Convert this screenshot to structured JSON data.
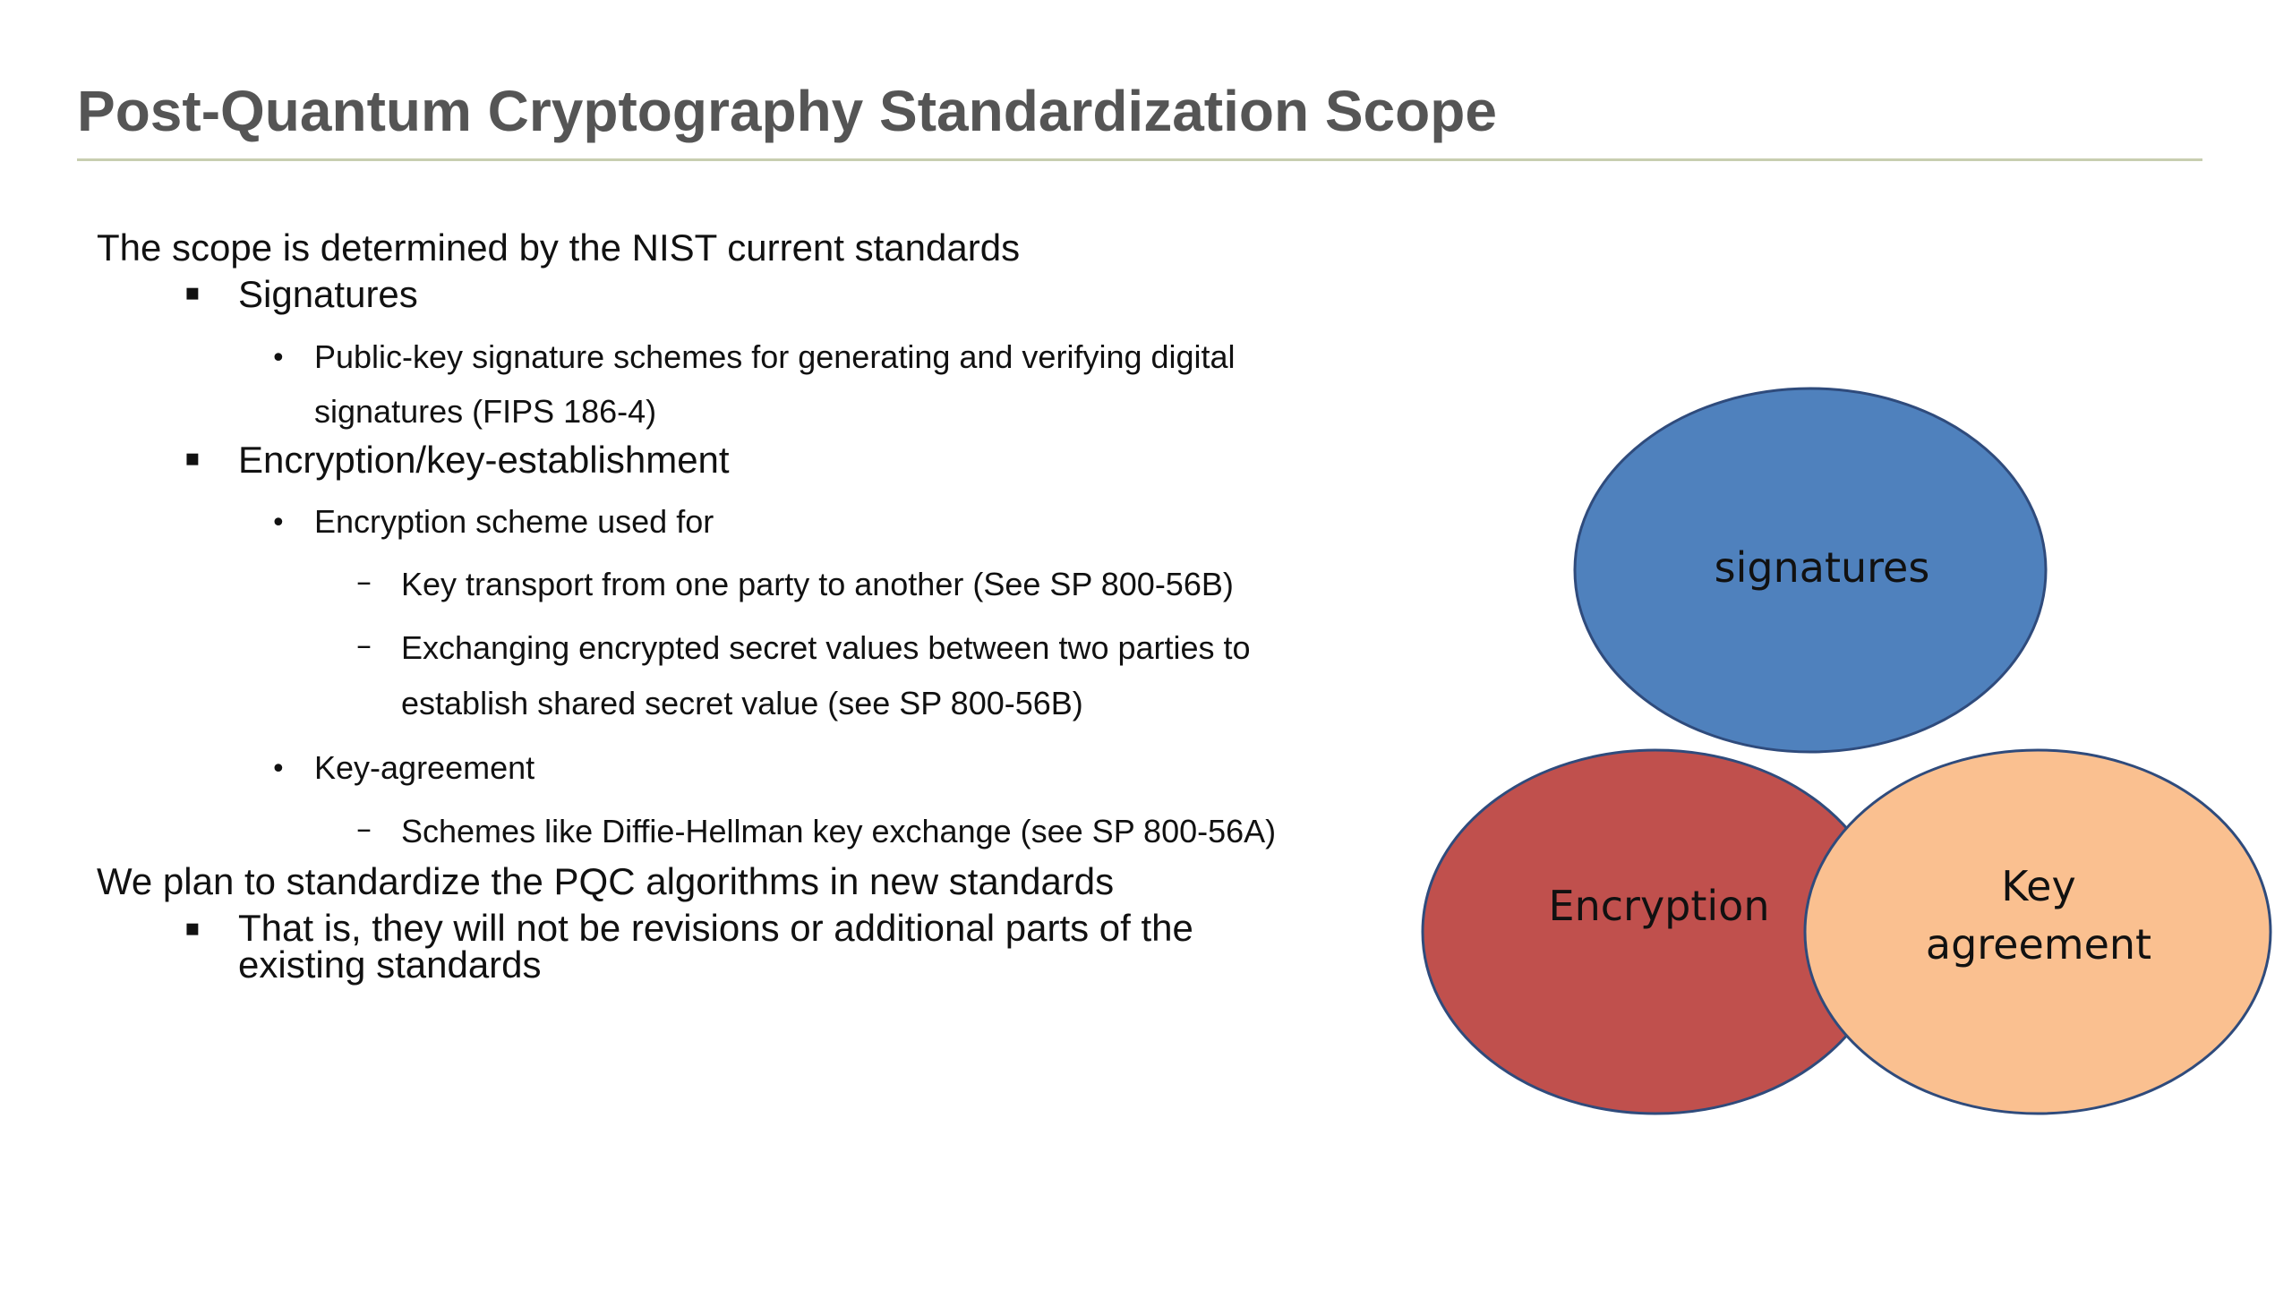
{
  "title": "Post-Quantum Cryptography Standardization Scope",
  "content": {
    "intro": "The scope is determined by the NIST current standards",
    "signatures_heading": "Signatures",
    "signatures_detail_line1": "Public-key signature schemes for generating and verifying digital",
    "signatures_detail_line2": "signatures (FIPS 186-4)",
    "encryption_heading": "Encryption/key-establishment",
    "encryption_scheme": "Encryption scheme used for",
    "key_transport": "Key transport from one party to another (See SP 800-56B)",
    "exchanging_line1": "Exchanging encrypted secret values between two parties to",
    "exchanging_line2": "establish shared secret value (see SP 800-56B)",
    "key_agreement": "Key-agreement",
    "diffie_hellman": "Schemes like Diffie-Hellman key exchange (see SP 800-56A)",
    "plan": "We plan to standardize the PQC algorithms in new standards",
    "plan_detail_line1": "That is, they will not be revisions or additional parts of the",
    "plan_detail_line2": "existing standards"
  },
  "bullets": {
    "square": "▪",
    "dot": "•",
    "dash": "–"
  },
  "diagram": {
    "signatures_label": "signatures",
    "encryption_label": "Encryption",
    "key_agreement_line1": "Key",
    "key_agreement_line2": "agreement",
    "colors": {
      "signatures_fill": "#4f81bd",
      "encryption_fill": "#c0504d",
      "key_agreement_fill": "#fac090",
      "outline": "#2f4b7c"
    }
  }
}
